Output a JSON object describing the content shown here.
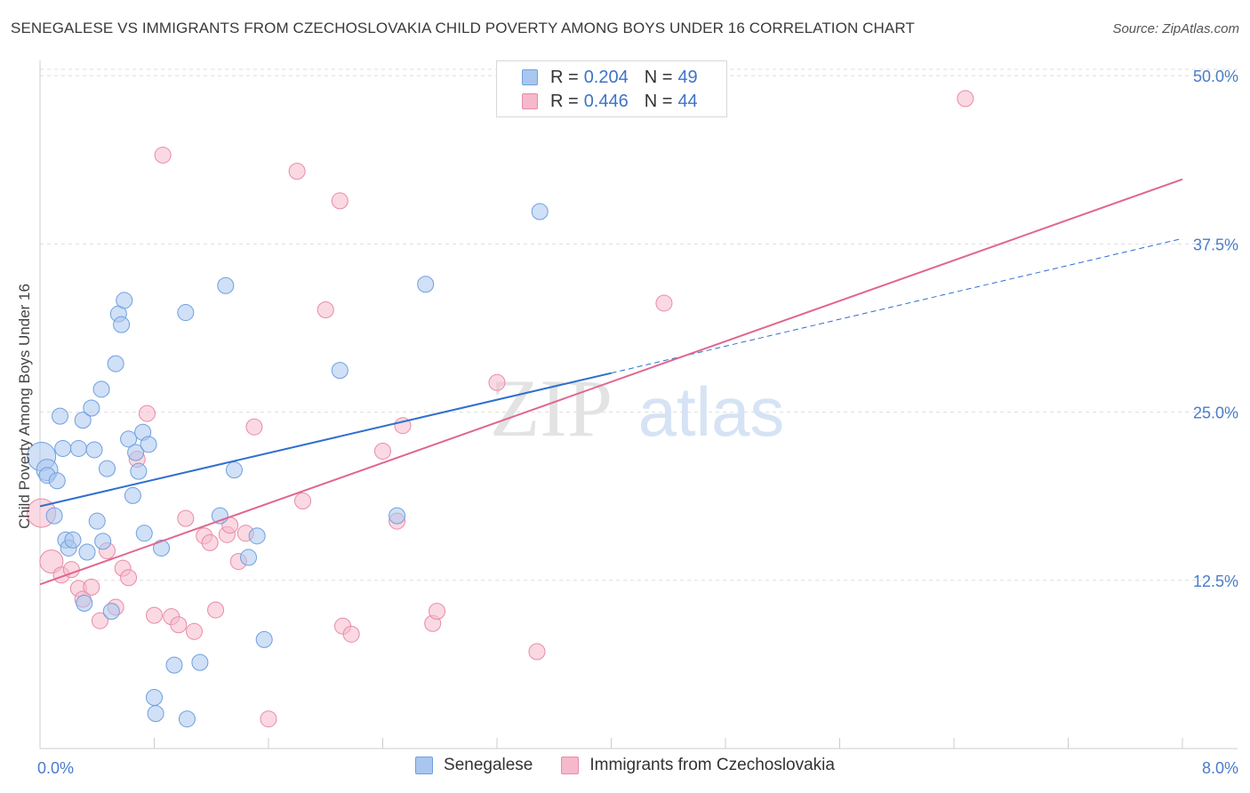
{
  "title": "SENEGALESE VS IMMIGRANTS FROM CZECHOSLOVAKIA CHILD POVERTY AMONG BOYS UNDER 16 CORRELATION CHART",
  "source": "Source: ZipAtlas.com",
  "colors": {
    "senegalese_fill": "#a9c7ee",
    "senegalese_stroke": "#6f9fe0",
    "senegalese_line": "#2f6fcf",
    "czech_fill": "#f6b9cc",
    "czech_stroke": "#e98aa8",
    "czech_line": "#e0668e",
    "grid": "#dddddd",
    "tick_text": "#4a7cc9"
  },
  "legend": {
    "rows": [
      {
        "r_label": "R =",
        "r_value": "0.204",
        "n_label": "N =",
        "n_value": "49"
      },
      {
        "r_label": "R =",
        "r_value": "0.446",
        "n_label": "N =",
        "n_value": "44"
      }
    ]
  },
  "watermark": {
    "zip": "ZIP",
    "atlas": "atlas"
  },
  "chart_data": {
    "type": "scatter",
    "title": "SENEGALESE VS IMMIGRANTS FROM CZECHOSLOVAKIA CHILD POVERTY AMONG BOYS UNDER 16 CORRELATION CHART",
    "xlabel": "",
    "ylabel": "Child Poverty Among Boys Under 16",
    "xlim": [
      0,
      8
    ],
    "ylim": [
      0,
      51
    ],
    "x_tick_labels": [
      "0.0%",
      "8.0%"
    ],
    "y_ticks": [
      12.5,
      25.0,
      37.5,
      50.0
    ],
    "y_tick_labels": [
      "12.5%",
      "25.0%",
      "37.5%",
      "50.0%"
    ],
    "grid": true,
    "legend_position": "top-center",
    "series": [
      {
        "name": "Senegalese",
        "regression": {
          "x0": 0,
          "y0": 18.0,
          "x1": 4.0,
          "y1": 27.9,
          "dashed_to_x": 8.0,
          "dashed_to_y": 37.9
        },
        "points": [
          [
            0.01,
            21.7,
            16
          ],
          [
            0.05,
            20.7,
            12
          ],
          [
            0.05,
            20.3,
            9
          ],
          [
            0.1,
            17.3,
            9
          ],
          [
            0.12,
            19.9,
            9
          ],
          [
            0.14,
            24.7,
            9
          ],
          [
            0.16,
            22.3,
            9
          ],
          [
            0.18,
            15.5,
            9
          ],
          [
            0.2,
            14.9,
            9
          ],
          [
            0.23,
            15.5,
            9
          ],
          [
            0.27,
            22.3,
            9
          ],
          [
            0.3,
            24.4,
            9
          ],
          [
            0.31,
            10.8,
            9
          ],
          [
            0.33,
            14.6,
            9
          ],
          [
            0.36,
            25.3,
            9
          ],
          [
            0.38,
            22.2,
            9
          ],
          [
            0.4,
            16.9,
            9
          ],
          [
            0.43,
            26.7,
            9
          ],
          [
            0.44,
            15.4,
            9
          ],
          [
            0.47,
            20.8,
            9
          ],
          [
            0.5,
            10.2,
            9
          ],
          [
            0.53,
            28.6,
            9
          ],
          [
            0.55,
            32.3,
            9
          ],
          [
            0.57,
            31.5,
            9
          ],
          [
            0.59,
            33.3,
            9
          ],
          [
            0.62,
            23.0,
            9
          ],
          [
            0.65,
            18.8,
            9
          ],
          [
            0.67,
            22.0,
            9
          ],
          [
            0.69,
            20.6,
            9
          ],
          [
            0.72,
            23.5,
            9
          ],
          [
            0.73,
            16.0,
            9
          ],
          [
            0.76,
            22.6,
            9
          ],
          [
            0.8,
            3.8,
            9
          ],
          [
            0.81,
            2.6,
            9
          ],
          [
            0.85,
            14.9,
            9
          ],
          [
            0.94,
            6.2,
            9
          ],
          [
            1.02,
            32.4,
            9
          ],
          [
            1.03,
            2.2,
            9
          ],
          [
            1.12,
            6.4,
            9
          ],
          [
            1.26,
            17.3,
            9
          ],
          [
            1.3,
            34.4,
            9
          ],
          [
            1.36,
            20.7,
            9
          ],
          [
            1.46,
            14.2,
            9
          ],
          [
            1.52,
            15.8,
            9
          ],
          [
            1.57,
            8.1,
            9
          ],
          [
            2.1,
            28.1,
            9
          ],
          [
            2.5,
            17.3,
            9
          ],
          [
            2.7,
            34.5,
            9
          ],
          [
            3.5,
            39.9,
            9
          ]
        ]
      },
      {
        "name": "Immigrants from Czechoslovakia",
        "regression": {
          "x0": 0,
          "y0": 12.2,
          "x1": 8.0,
          "y1": 42.3
        },
        "points": [
          [
            0.01,
            17.5,
            16
          ],
          [
            0.08,
            13.9,
            13
          ],
          [
            0.15,
            12.9,
            9
          ],
          [
            0.22,
            13.3,
            9
          ],
          [
            0.27,
            11.9,
            9
          ],
          [
            0.3,
            11.1,
            9
          ],
          [
            0.36,
            12.0,
            9
          ],
          [
            0.42,
            9.5,
            9
          ],
          [
            0.47,
            14.7,
            9
          ],
          [
            0.53,
            10.5,
            9
          ],
          [
            0.58,
            13.4,
            9
          ],
          [
            0.62,
            12.7,
            9
          ],
          [
            0.68,
            21.5,
            9
          ],
          [
            0.75,
            24.9,
            9
          ],
          [
            0.8,
            9.9,
            9
          ],
          [
            0.86,
            44.1,
            9
          ],
          [
            0.92,
            9.8,
            9
          ],
          [
            0.97,
            9.2,
            9
          ],
          [
            1.02,
            17.1,
            9
          ],
          [
            1.08,
            8.7,
            9
          ],
          [
            1.15,
            15.8,
            9
          ],
          [
            1.19,
            15.3,
            9
          ],
          [
            1.23,
            10.3,
            9
          ],
          [
            1.31,
            15.9,
            9
          ],
          [
            1.33,
            16.6,
            9
          ],
          [
            1.39,
            13.9,
            9
          ],
          [
            1.44,
            16.0,
            9
          ],
          [
            1.5,
            23.9,
            9
          ],
          [
            1.6,
            2.2,
            9
          ],
          [
            1.8,
            42.9,
            9
          ],
          [
            1.84,
            18.4,
            9
          ],
          [
            2.0,
            32.6,
            9
          ],
          [
            2.1,
            40.7,
            9
          ],
          [
            2.12,
            9.1,
            9
          ],
          [
            2.18,
            8.5,
            9
          ],
          [
            2.4,
            22.1,
            9
          ],
          [
            2.5,
            16.9,
            9
          ],
          [
            2.54,
            24.0,
            9
          ],
          [
            2.75,
            9.3,
            9
          ],
          [
            2.78,
            10.2,
            9
          ],
          [
            3.2,
            27.2,
            9
          ],
          [
            3.48,
            7.2,
            9
          ],
          [
            4.37,
            33.1,
            9
          ],
          [
            6.48,
            48.3,
            9
          ]
        ]
      }
    ]
  }
}
